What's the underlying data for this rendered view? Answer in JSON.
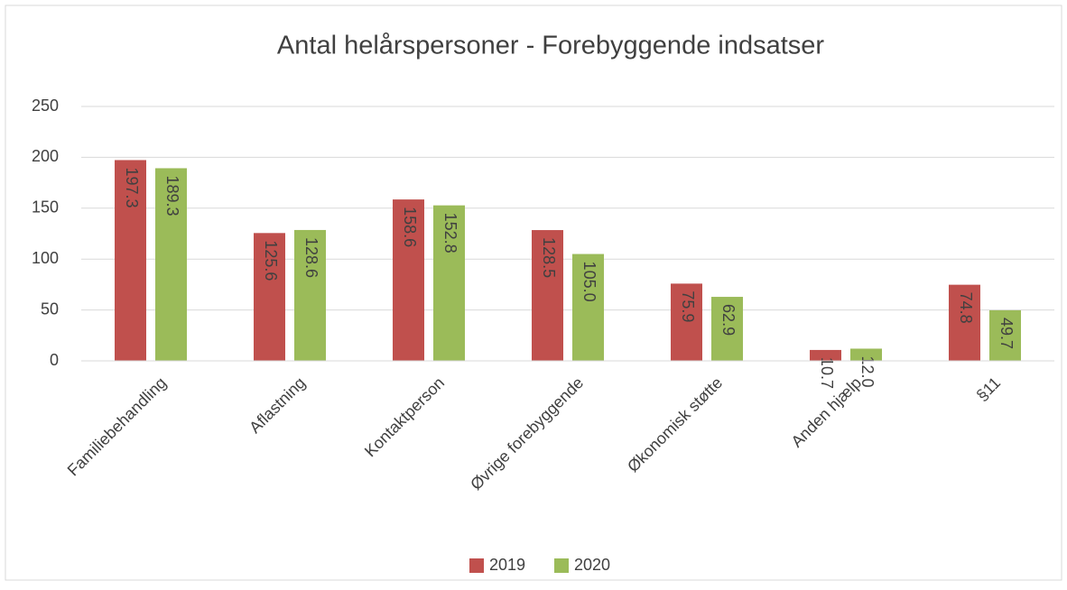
{
  "chart_data": {
    "type": "bar",
    "title": "Antal helårspersoner - Forebyggende indsatser",
    "categories": [
      "Familiebehandling",
      "Aflastning",
      "Kontaktperson",
      "Øvrige forebyggende",
      "Økonomisk støtte",
      "Anden hjælp",
      "§11"
    ],
    "series": [
      {
        "name": "2019",
        "color": "#c0504d",
        "values": [
          197.3,
          125.6,
          158.6,
          128.5,
          75.9,
          10.7,
          74.8
        ],
        "value_labels": [
          "197.3",
          "125.6",
          "158.6",
          "128.5",
          "75.9",
          "10.7",
          "74.8"
        ]
      },
      {
        "name": "2020",
        "color": "#9bbb59",
        "values": [
          189.3,
          128.6,
          152.8,
          105.0,
          62.9,
          12.0,
          49.7
        ],
        "value_labels": [
          "189.3",
          "128.6",
          "152.8",
          "105.0",
          "62.9",
          "12.0",
          "49.7"
        ]
      }
    ],
    "ylim": [
      0,
      250
    ],
    "yticks": [
      0,
      50,
      100,
      150,
      200,
      250
    ],
    "grid": true,
    "legend": "bottom"
  }
}
